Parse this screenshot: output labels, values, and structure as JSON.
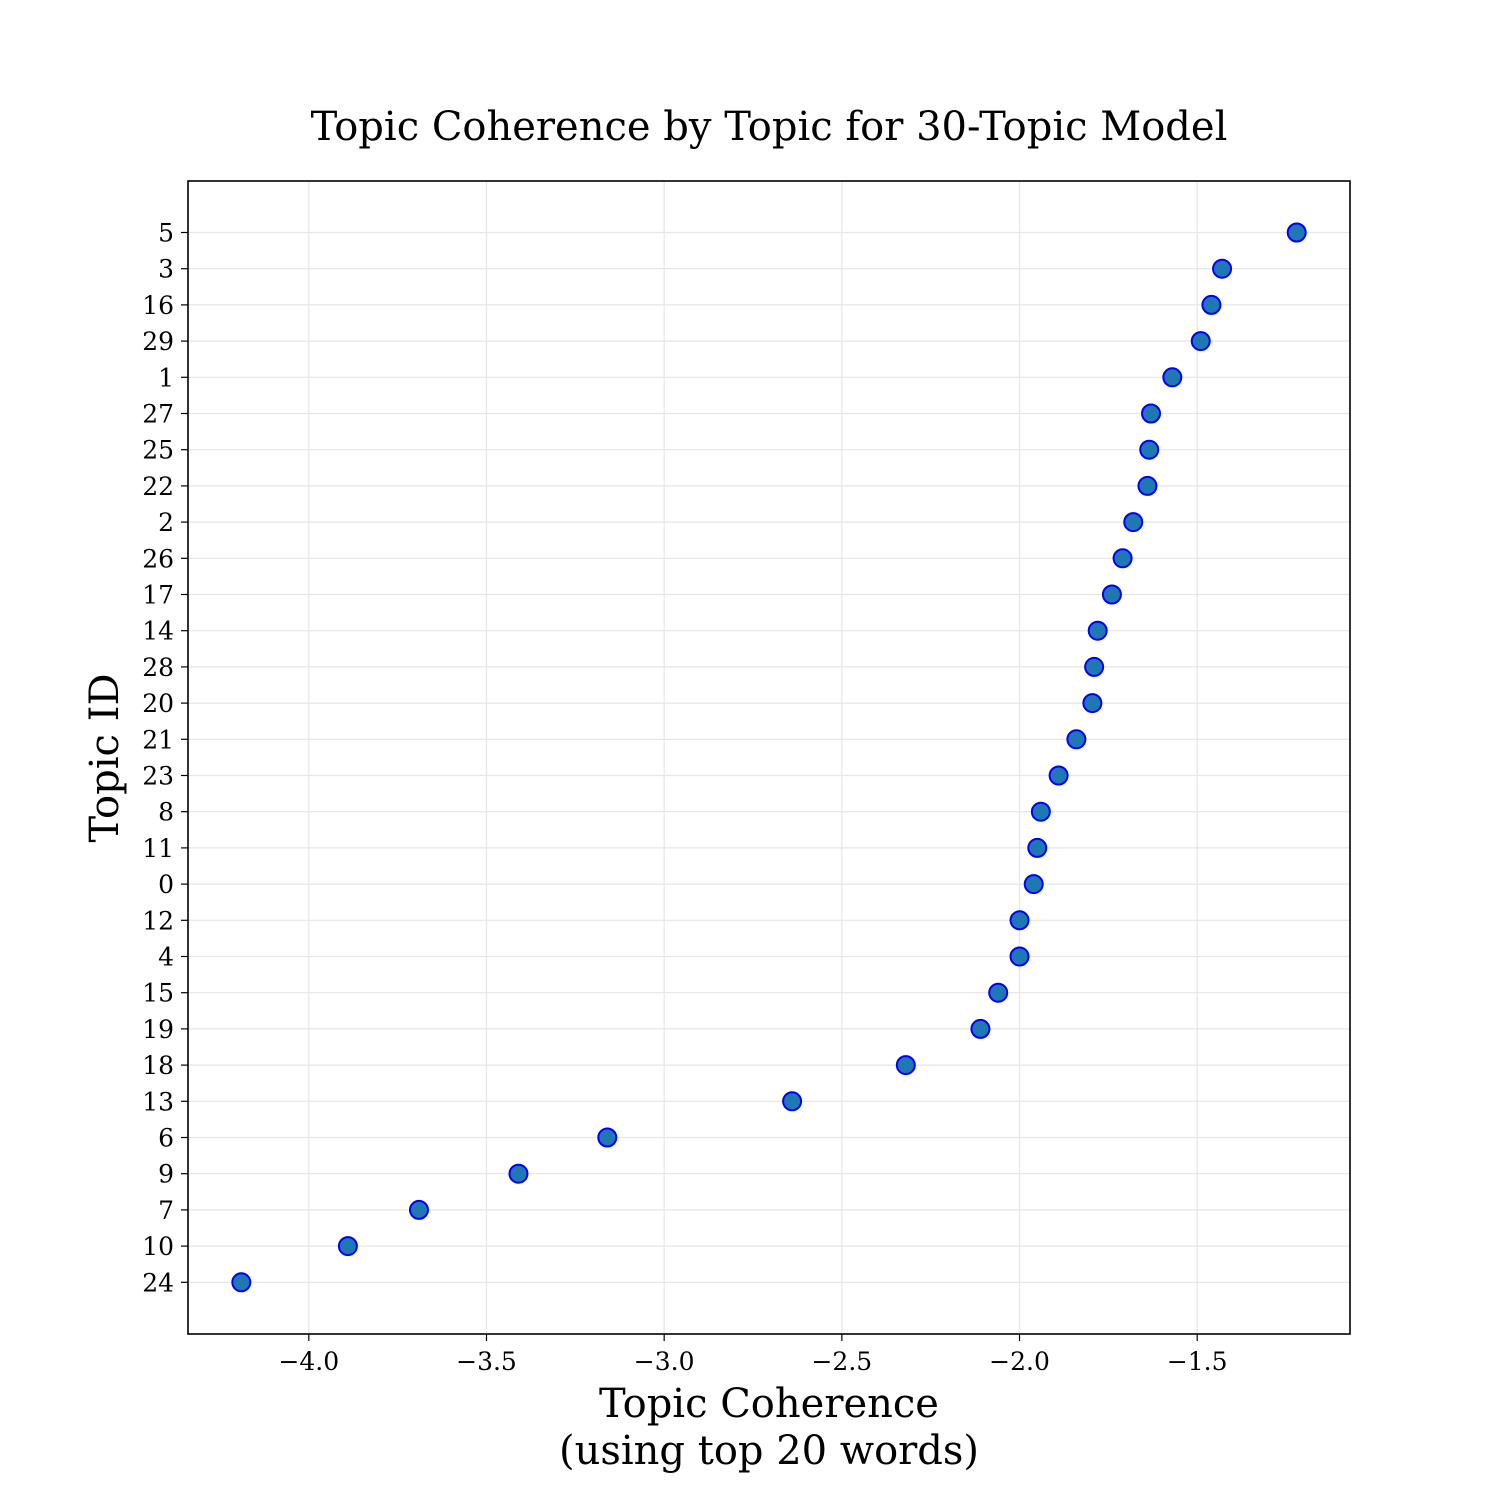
{
  "chart_data": {
    "type": "scatter",
    "title": "Topic Coherence by Topic for 30-Topic Model",
    "xlabel_lines": [
      "Topic Coherence",
      "(using top 20 words)"
    ],
    "ylabel": "Topic ID",
    "xlim": [
      -4.34,
      -1.07
    ],
    "xticks": [
      -4.0,
      -3.5,
      -3.0,
      -2.5,
      -2.0,
      -1.5
    ],
    "xtick_labels": [
      "−4.0",
      "−3.5",
      "−3.0",
      "−2.5",
      "−2.0",
      "−1.5"
    ],
    "grid": true,
    "marker_fill": "#1f77b4",
    "marker_edge": "#0000ff",
    "points": [
      {
        "topic": "5",
        "coherence": -1.22
      },
      {
        "topic": "3",
        "coherence": -1.43
      },
      {
        "topic": "16",
        "coherence": -1.46
      },
      {
        "topic": "29",
        "coherence": -1.49
      },
      {
        "topic": "1",
        "coherence": -1.57
      },
      {
        "topic": "27",
        "coherence": -1.63
      },
      {
        "topic": "25",
        "coherence": -1.635
      },
      {
        "topic": "22",
        "coherence": -1.64
      },
      {
        "topic": "2",
        "coherence": -1.68
      },
      {
        "topic": "26",
        "coherence": -1.71
      },
      {
        "topic": "17",
        "coherence": -1.74
      },
      {
        "topic": "14",
        "coherence": -1.78
      },
      {
        "topic": "28",
        "coherence": -1.79
      },
      {
        "topic": "20",
        "coherence": -1.795
      },
      {
        "topic": "21",
        "coherence": -1.84
      },
      {
        "topic": "23",
        "coherence": -1.89
      },
      {
        "topic": "8",
        "coherence": -1.94
      },
      {
        "topic": "11",
        "coherence": -1.95
      },
      {
        "topic": "0",
        "coherence": -1.96
      },
      {
        "topic": "12",
        "coherence": -2.0
      },
      {
        "topic": "4",
        "coherence": -2.0
      },
      {
        "topic": "15",
        "coherence": -2.06
      },
      {
        "topic": "19",
        "coherence": -2.11
      },
      {
        "topic": "18",
        "coherence": -2.32
      },
      {
        "topic": "13",
        "coherence": -2.64
      },
      {
        "topic": "6",
        "coherence": -3.16
      },
      {
        "topic": "9",
        "coherence": -3.41
      },
      {
        "topic": "7",
        "coherence": -3.69
      },
      {
        "topic": "10",
        "coherence": -3.89
      },
      {
        "topic": "24",
        "coherence": -4.19
      }
    ]
  }
}
